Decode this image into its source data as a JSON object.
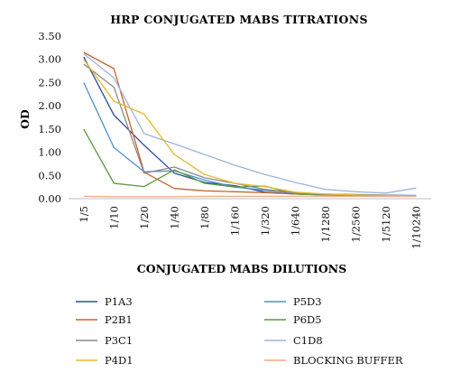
{
  "chart_data": {
    "type": "line",
    "title": "HRP CONJUGATED MABS TITRATIONS",
    "xlabel": "CONJUGATED MABS DILUTIONS",
    "ylabel": "OD",
    "ylim": [
      0,
      3.5
    ],
    "yticks": [
      "0.00",
      "0.50",
      "1.00",
      "1.50",
      "2.00",
      "2.50",
      "3.00",
      "3.50"
    ],
    "categories": [
      "1/5",
      "1/10",
      "1/20",
      "1/40",
      "1/80",
      "1/160",
      "1/320",
      "1/640",
      "1/1280",
      "1/2560",
      "1/5120",
      "1/10240"
    ],
    "grid": false,
    "legend_position": "bottom",
    "series": [
      {
        "name": "P1A3",
        "color": "#2f4a9c",
        "values": [
          3.05,
          1.8,
          1.15,
          0.55,
          0.35,
          0.28,
          0.14,
          0.1,
          0.08,
          0.08,
          0.07,
          0.06
        ]
      },
      {
        "name": "P5D3",
        "color": "#4d8fd1",
        "values": [
          2.5,
          1.1,
          0.58,
          0.6,
          0.4,
          0.25,
          0.18,
          0.12,
          0.1,
          0.09,
          0.08,
          0.07
        ]
      },
      {
        "name": "P2B1",
        "color": "#c8642c",
        "values": [
          3.15,
          2.8,
          0.57,
          0.22,
          0.17,
          0.15,
          0.13,
          0.1,
          0.08,
          0.07,
          0.06,
          0.05
        ]
      },
      {
        "name": "P6D5",
        "color": "#5b9a3c",
        "values": [
          1.5,
          0.33,
          0.26,
          0.62,
          0.33,
          0.25,
          0.27,
          0.1,
          0.08,
          0.07,
          0.06,
          0.05
        ]
      },
      {
        "name": "P3C1",
        "color": "#8a8a8a",
        "values": [
          2.9,
          2.4,
          0.55,
          0.68,
          0.45,
          0.33,
          0.2,
          0.12,
          0.09,
          0.08,
          0.07,
          0.06
        ]
      },
      {
        "name": "C1D8",
        "color": "#9fb3d9",
        "values": [
          3.12,
          2.6,
          1.4,
          1.18,
          0.95,
          0.72,
          0.52,
          0.35,
          0.2,
          0.15,
          0.12,
          0.23
        ]
      },
      {
        "name": "P4D1",
        "color": "#e6b82c",
        "values": [
          3.0,
          2.1,
          1.82,
          0.95,
          0.52,
          0.33,
          0.26,
          0.14,
          0.1,
          0.08,
          0.07,
          0.06
        ]
      },
      {
        "name": "BLOCKING BUFFER",
        "color": "#f0a988",
        "values": [
          0.05,
          0.04,
          0.04,
          0.04,
          0.05,
          0.05,
          0.05,
          0.05,
          0.05,
          0.05,
          0.05,
          0.05
        ]
      }
    ]
  }
}
